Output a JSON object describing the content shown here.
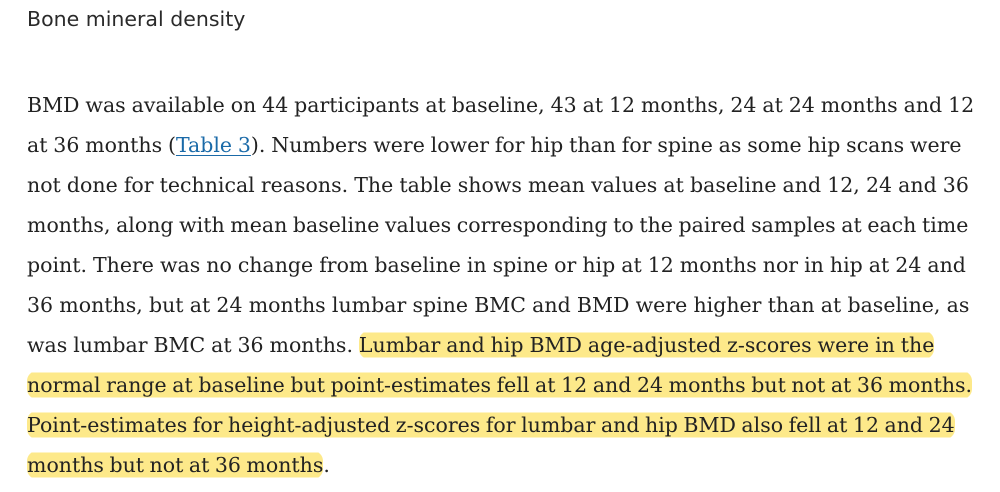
{
  "section": {
    "heading": "Bone mineral density"
  },
  "paragraph": {
    "line1": "BMD was available on 44 participants at baseline, 43 at 12 months, 24 at 24 months and 12",
    "line2_pre": "at 36 months (",
    "table_link": "Table 3",
    "line2_post": "). Numbers were lower for hip than for spine as some hip scans were",
    "line3": "not done for technical reasons. The table shows mean values at baseline and 12, 24 and 36",
    "line4": "months, along with mean baseline values corresponding to the paired samples at each time",
    "line5": "point. There was no change from baseline in spine or hip at 12 months nor in hip at 24 and",
    "line6": "36 months, but at 24 months lumbar spine BMC and BMD were higher than at baseline, as",
    "line7_pre": "was lumbar BMC at 36 months. ",
    "line7_hl": "Lumbar and hip BMD age-adjusted z-scores were in the",
    "line8_hl": "normal range at baseline but point-estimates fell at 12 and 24 months but not at 36 months.",
    "line9_hl": "Point-estimates for height-adjusted z-scores for lumbar and hip BMD also fell at 12 and 24",
    "line10_hl": "months but not at 36 months",
    "line10_post": "."
  },
  "colors": {
    "highlight": "#fde98a",
    "link": "#1a6aa8",
    "text": "#222222"
  }
}
